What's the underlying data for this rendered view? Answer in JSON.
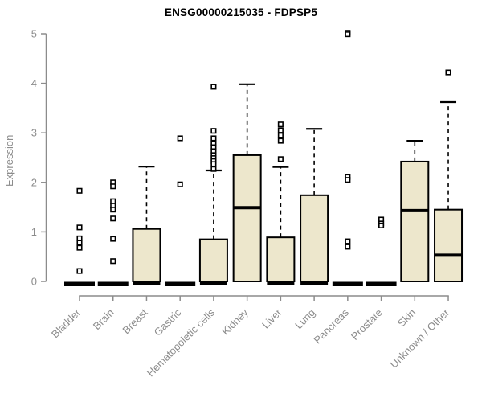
{
  "chart_data": {
    "type": "boxplot",
    "title": "ENSG00000215035 - FDPSP5",
    "ylabel": "Expression",
    "ylim": [
      0,
      5
    ],
    "yticks": [
      0,
      1,
      2,
      3,
      4,
      5
    ],
    "grid": false,
    "legend": "none",
    "colors": {
      "box_fill": "#EDE7CC",
      "box_border": "#000000",
      "axis": "#8C8C8C",
      "axis_text": "#8C8C8C",
      "background": "#FFFFFF",
      "title_text": "#000000"
    },
    "categories": [
      "Bladder",
      "Brain",
      "Breast",
      "Gastric",
      "Hematopoietic cells",
      "Kidney",
      "Liver",
      "Lung",
      "Pancreas",
      "Prostate",
      "Skin",
      "Unknown / Other"
    ],
    "series": [
      {
        "name": "Bladder",
        "q1": 0,
        "median": 0,
        "q3": 0,
        "whisker_low": 0,
        "whisker_high": 0,
        "outliers": [
          1.83,
          1.09,
          0.87,
          0.78,
          0.68,
          0.21
        ]
      },
      {
        "name": "Brain",
        "q1": 0,
        "median": 0,
        "q3": 0,
        "whisker_low": 0,
        "whisker_high": 0,
        "outliers": [
          2.0,
          1.92,
          1.62,
          1.53,
          1.45,
          1.27,
          0.86,
          0.41
        ]
      },
      {
        "name": "Breast",
        "q1": 0,
        "median": 0,
        "q3": 1.06,
        "whisker_low": 0,
        "whisker_high": 2.32,
        "outliers": []
      },
      {
        "name": "Gastric",
        "q1": 0,
        "median": 0,
        "q3": 0,
        "whisker_low": 0,
        "whisker_high": 0,
        "outliers": [
          2.89,
          1.96
        ]
      },
      {
        "name": "Hematopoietic cells",
        "q1": 0,
        "median": 0,
        "q3": 0.85,
        "whisker_low": 0,
        "whisker_high": 2.24,
        "outliers": [
          3.93,
          3.04,
          2.89,
          2.79,
          2.71,
          2.63,
          2.55,
          2.49,
          2.43,
          2.37,
          2.27
        ]
      },
      {
        "name": "Kidney",
        "q1": 0,
        "median": 1.49,
        "q3": 2.55,
        "whisker_low": 0,
        "whisker_high": 3.98,
        "outliers": []
      },
      {
        "name": "Liver",
        "q1": 0,
        "median": 0,
        "q3": 0.89,
        "whisker_low": 0,
        "whisker_high": 2.31,
        "outliers": [
          3.17,
          3.05,
          2.95,
          2.84,
          2.47
        ]
      },
      {
        "name": "Lung",
        "q1": 0,
        "median": 0,
        "q3": 1.74,
        "whisker_low": 0,
        "whisker_high": 3.08,
        "outliers": []
      },
      {
        "name": "Pancreas",
        "q1": 0,
        "median": 0,
        "q3": 0,
        "whisker_low": 0,
        "whisker_high": 0,
        "outliers": [
          5.02,
          4.99,
          2.11,
          2.05,
          0.81,
          0.7
        ]
      },
      {
        "name": "Prostate",
        "q1": 0,
        "median": 0,
        "q3": 0,
        "whisker_low": 0,
        "whisker_high": 0,
        "outliers": [
          1.25,
          1.17,
          1.13
        ]
      },
      {
        "name": "Skin",
        "q1": 0,
        "median": 1.43,
        "q3": 2.42,
        "whisker_low": 0,
        "whisker_high": 2.84,
        "outliers": []
      },
      {
        "name": "Unknown / Other",
        "q1": 0,
        "median": 0.53,
        "q3": 1.45,
        "whisker_low": 0,
        "whisker_high": 3.62,
        "outliers": [
          4.22
        ]
      }
    ]
  }
}
